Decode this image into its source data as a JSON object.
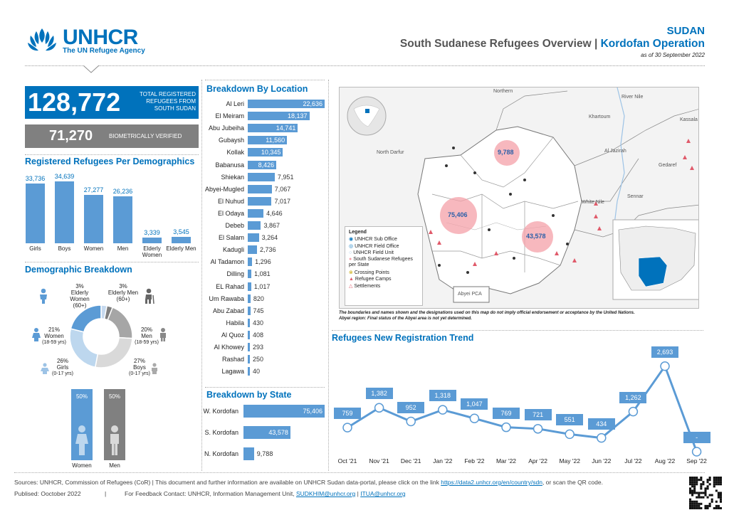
{
  "header": {
    "org": "UNHCR",
    "org_sub": "The UN Refugee Agency",
    "country": "SUDAN",
    "title_a": "South Sudanese Refugees Overview |",
    "title_b": "Kordofan Operation",
    "as_of": "as of 30 September 2022"
  },
  "totals": {
    "total_value": "128,772",
    "total_label": "TOTAL REGISTERED REFUGEES FROM SOUTH SUDAN",
    "bio_value": "71,270",
    "bio_label": "BIOMETRICALLY VERIFIED"
  },
  "demographics": {
    "title": "Registered Refugees Per Demographics",
    "categories": [
      "Girls",
      "Boys",
      "Women",
      "Men",
      "Elderly Women",
      "Elderly Men"
    ],
    "values": [
      33736,
      34639,
      27277,
      26236,
      3339,
      3545
    ],
    "value_labels": [
      "33,736",
      "34,639",
      "27,277",
      "26,236",
      "3,339",
      "3,545"
    ]
  },
  "breakdown": {
    "title": "Demographic Breakdown",
    "segments": [
      {
        "pct": "3%",
        "label": "Elderly Women (60+)",
        "value": 3,
        "color": "#c6d9ee"
      },
      {
        "pct": "3%",
        "label": "Elderly Men (60+)",
        "value": 3,
        "color": "#7f7f7f"
      },
      {
        "pct": "20%",
        "label": "Men",
        "sub": "(18-59 yrs)",
        "value": 20,
        "color": "#a6a6a6"
      },
      {
        "pct": "27%",
        "label": "Boys",
        "sub": "(0-17 yrs)",
        "value": 27,
        "color": "#d9d9d9"
      },
      {
        "pct": "26%",
        "label": "Girls",
        "sub": "(0-17 yrs)",
        "value": 26,
        "color": "#bdd7ee"
      },
      {
        "pct": "21%",
        "label": "Women",
        "sub": "(18-59 yrs)",
        "value": 21,
        "color": "#5b9bd5"
      }
    ],
    "women_pct": "50%",
    "men_pct": "50%",
    "women_label": "Women",
    "men_label": "Men"
  },
  "location": {
    "title": "Breakdown By Location",
    "items": [
      {
        "name": "Al Leri",
        "value": 22636,
        "label": "22,636"
      },
      {
        "name": "El Meiram",
        "value": 18137,
        "label": "18,137"
      },
      {
        "name": "Abu Jubeiha",
        "value": 14741,
        "label": "14,741"
      },
      {
        "name": "Gubaysh",
        "value": 11560,
        "label": "11,560"
      },
      {
        "name": "Kollak",
        "value": 10345,
        "label": "10,345"
      },
      {
        "name": "Babanusa",
        "value": 8426,
        "label": "8,426"
      },
      {
        "name": "Shiekan",
        "value": 7951,
        "label": "7,951"
      },
      {
        "name": "Abyei-Mugled",
        "value": 7067,
        "label": "7,067"
      },
      {
        "name": "El Nuhud",
        "value": 7017,
        "label": "7,017"
      },
      {
        "name": "El Odaya",
        "value": 4646,
        "label": "4,646"
      },
      {
        "name": "Debeb",
        "value": 3867,
        "label": "3,867"
      },
      {
        "name": "El Salam",
        "value": 3264,
        "label": "3,264"
      },
      {
        "name": "Kadugli",
        "value": 2736,
        "label": "2,736"
      },
      {
        "name": "Al Tadamon",
        "value": 1296,
        "label": "1,296"
      },
      {
        "name": "Dilling",
        "value": 1081,
        "label": "1,081"
      },
      {
        "name": "EL Rahad",
        "value": 1017,
        "label": "1,017"
      },
      {
        "name": "Um Rawaba",
        "value": 820,
        "label": "820"
      },
      {
        "name": "Abu Zabad",
        "value": 745,
        "label": "745"
      },
      {
        "name": "Habila",
        "value": 430,
        "label": "430"
      },
      {
        "name": "Al Quoz",
        "value": 408,
        "label": "408"
      },
      {
        "name": "Al Khowey",
        "value": 293,
        "label": "293"
      },
      {
        "name": "Rashad",
        "value": 250,
        "label": "250"
      },
      {
        "name": "Lagawa",
        "value": 40,
        "label": "40"
      }
    ]
  },
  "state": {
    "title": "Breakdown by State",
    "items": [
      {
        "name": "W. Kordofan",
        "value": 75406,
        "label": "75,406"
      },
      {
        "name": "S. Kordofan",
        "value": 43578,
        "label": "43,578"
      },
      {
        "name": "N. Kordofan",
        "value": 9788,
        "label": "9,788"
      }
    ]
  },
  "map": {
    "legend_title": "Legend",
    "legend_items": [
      "UNHCR Sub Office",
      "UNHCR Field Office",
      "UNHCR Field Unit",
      "South Sudanese Refugees per State",
      "Crossing Points",
      "Refugee Camps",
      "Settlements"
    ],
    "labels": {
      "northern": "Northern",
      "river_nile": "River Nile",
      "khartoum": "Khartoum",
      "kassala": "Kassala",
      "north_darfur": "North Darfur",
      "aljazirah": "Al Jazirah",
      "gedaref": "Gedaref",
      "white_nile": "White Nile",
      "sennar": "Sennar",
      "abyei": "Abyei PCA"
    },
    "bubble_n": "9,788",
    "bubble_w": "75,406",
    "bubble_s": "43,578",
    "disclaimer_1": "The boundaries and names shown and the designations used on this map do not imply official endorsement or acceptance by the United Nations.",
    "disclaimer_2": "Abyei region: Final status of the Abyei area is not yet determined."
  },
  "trend": {
    "title": "Refugees New Registration Trend",
    "months": [
      "Oct '21",
      "Nov '21",
      "Dec '21",
      "Jan '22",
      "Feb '22",
      "Mar '22",
      "Apr '22",
      "May '22",
      "Jun '22",
      "Jul '22",
      "Aug '22",
      "Sep '22"
    ],
    "values": [
      759,
      1382,
      952,
      1318,
      1047,
      769,
      721,
      551,
      434,
      1262,
      2693,
      0
    ],
    "labels": [
      "759",
      "1,382",
      "952",
      "1,318",
      "1,047",
      "769",
      "721",
      "551",
      "434",
      "1,262",
      "2,693",
      "-"
    ]
  },
  "footer": {
    "line1": "Sources: UNHCR, Commission of Refugees (CoR) | This document and further information are available on UNHCR Sudan data-portal, please click on the link",
    "link1": "https://data2.unhcr.org/en/country/sdn",
    "line1_end": ", or scan the QR code.",
    "published": "Publised: Ooctober 2022",
    "sep": "|",
    "feedback": "For Feedback Contact: UNHCR, Information Management Unit,",
    "email1": "SUDKHIM@unhcr.org",
    "email_sep": "|",
    "email2": "ITUA@unhcr.org"
  },
  "colors": {
    "brand": "#0072bc",
    "bar": "#5b9bd5",
    "grey": "#7f7f7f"
  }
}
